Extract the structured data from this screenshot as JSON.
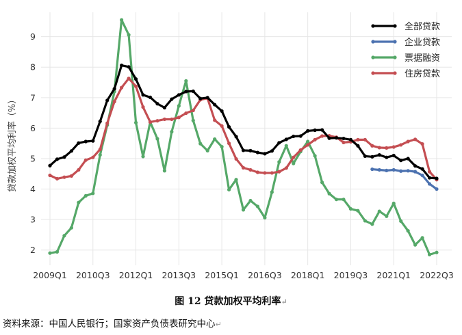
{
  "chart_data": {
    "type": "line",
    "ylabel": "贷款加权平均利率（%）",
    "ylim": [
      1.5,
      9.8
    ],
    "yticks": [
      2,
      3,
      4,
      5,
      6,
      7,
      8,
      9
    ],
    "x_start": "2009Q1",
    "x_tick_labels": [
      "2009Q1",
      "2010Q3",
      "2012Q1",
      "2013Q3",
      "2015Q1",
      "2016Q3",
      "2018Q1",
      "2019Q3",
      "2021Q1",
      "2022Q3"
    ],
    "grid": true,
    "legend_position": "top-right",
    "series": [
      {
        "name": "全部贷款",
        "color": "#000000",
        "start_index": 0,
        "values": [
          4.77,
          4.98,
          5.05,
          5.25,
          5.51,
          5.56,
          5.58,
          6.22,
          6.91,
          7.29,
          8.06,
          8.01,
          7.61,
          7.09,
          7.01,
          6.8,
          6.67,
          6.95,
          7.09,
          7.2,
          7.21,
          6.97,
          7.0,
          6.77,
          6.56,
          6.04,
          5.72,
          5.27,
          5.26,
          5.2,
          5.16,
          5.25,
          5.52,
          5.63,
          5.73,
          5.74,
          5.91,
          5.93,
          5.94,
          5.67,
          5.68,
          5.66,
          5.62,
          5.42,
          5.08,
          5.06,
          5.12,
          5.04,
          5.1,
          4.94,
          5.0,
          4.76,
          4.66,
          4.37,
          4.35
        ]
      },
      {
        "name": "企业贷款",
        "color": "#4c72b0",
        "start_index": 45,
        "values": [
          4.65,
          4.63,
          4.61,
          4.63,
          4.59,
          4.6,
          4.57,
          4.45,
          4.17,
          4.0
        ]
      },
      {
        "name": "票据融资",
        "color": "#55a868",
        "start_index": 0,
        "values": [
          1.9,
          1.94,
          2.47,
          2.73,
          3.56,
          3.78,
          3.86,
          5.12,
          6.1,
          7.2,
          9.55,
          9.06,
          6.18,
          5.07,
          6.2,
          5.65,
          4.6,
          5.88,
          6.73,
          7.55,
          6.25,
          5.49,
          5.26,
          5.64,
          5.39,
          3.98,
          4.31,
          3.32,
          3.62,
          3.43,
          3.06,
          3.9,
          4.89,
          5.42,
          4.84,
          5.23,
          5.56,
          5.09,
          4.22,
          3.85,
          3.66,
          3.66,
          3.35,
          3.29,
          2.96,
          2.85,
          3.27,
          3.11,
          3.53,
          2.95,
          2.63,
          2.17,
          2.4,
          1.85,
          1.92
        ]
      },
      {
        "name": "住房贷款",
        "color": "#c44e52",
        "start_index": 0,
        "values": [
          4.45,
          4.34,
          4.39,
          4.43,
          4.63,
          4.95,
          5.04,
          5.3,
          6.16,
          6.87,
          7.33,
          7.63,
          7.37,
          6.69,
          6.2,
          6.24,
          6.29,
          6.29,
          6.35,
          6.49,
          6.58,
          6.93,
          6.98,
          6.26,
          6.07,
          5.5,
          4.99,
          4.7,
          4.63,
          4.55,
          4.53,
          4.53,
          4.57,
          4.69,
          5.04,
          5.28,
          5.45,
          5.62,
          5.74,
          5.75,
          5.7,
          5.53,
          5.55,
          5.62,
          5.62,
          5.42,
          5.36,
          5.35,
          5.38,
          5.45,
          5.56,
          5.63,
          5.48,
          4.57,
          4.31
        ]
      }
    ]
  },
  "caption": "图 12  贷款加权平均利率",
  "source": "资料来源：中国人民银行；国家资产负债表研究中心"
}
